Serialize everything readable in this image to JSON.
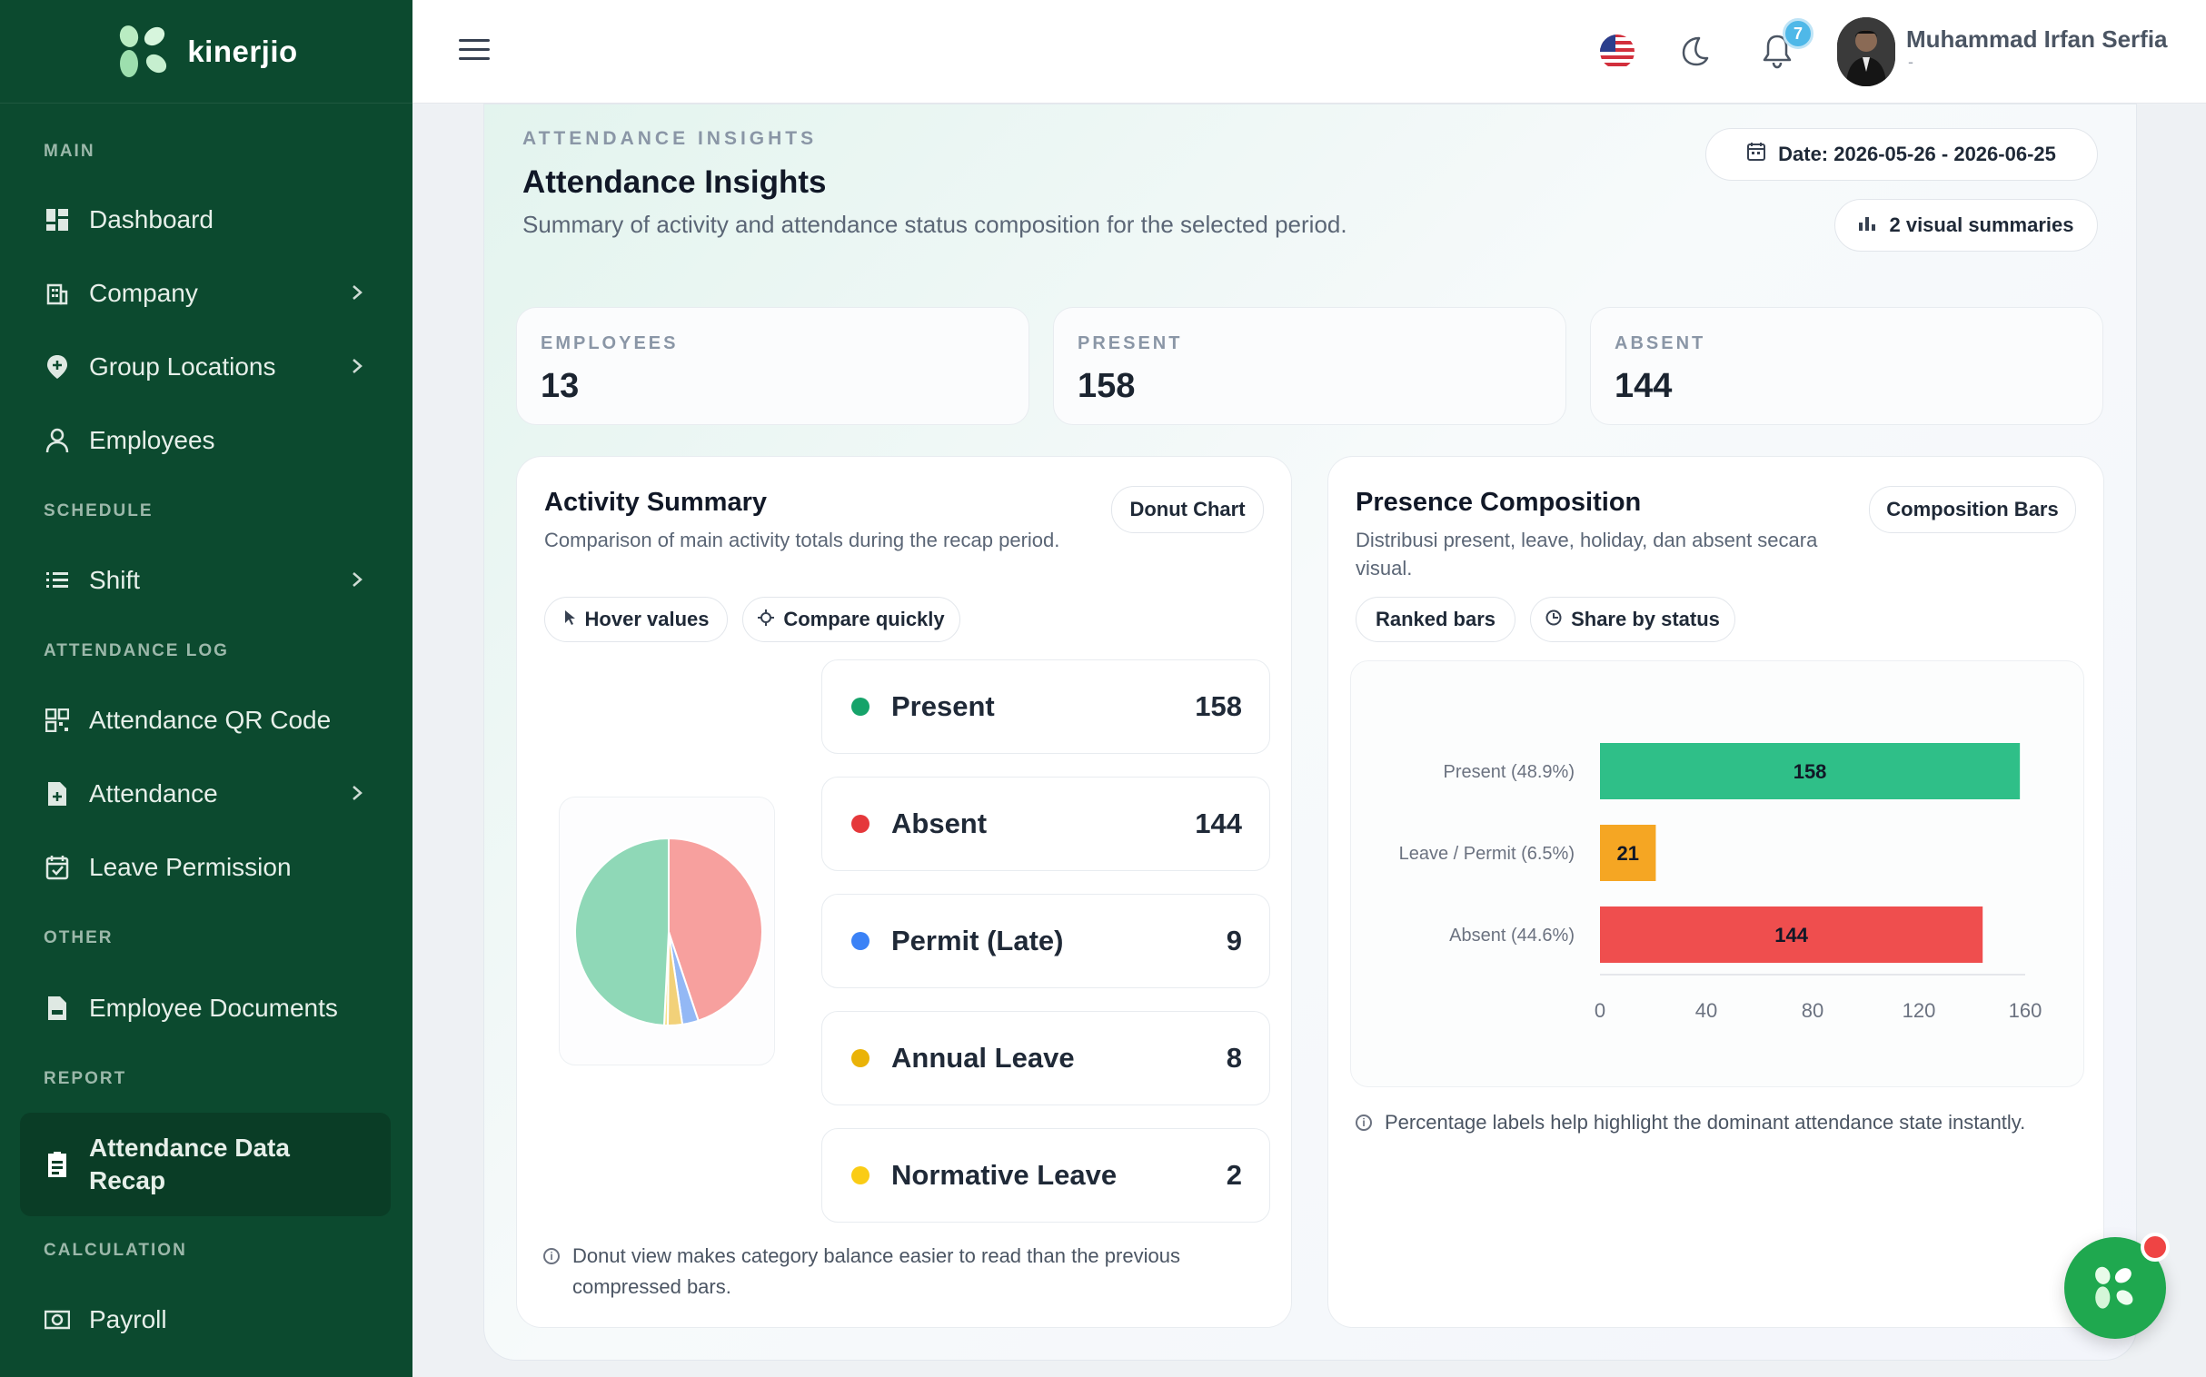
{
  "brand": {
    "name": "kinerjio"
  },
  "sidebar": {
    "sections": {
      "main": "MAIN",
      "schedule": "SCHEDULE",
      "attendance_log": "ATTENDANCE LOG",
      "other": "OTHER",
      "report": "REPORT",
      "calculation": "CALCULATION"
    },
    "items": [
      {
        "label": "Dashboard",
        "icon": "dashboard-icon"
      },
      {
        "label": "Company",
        "icon": "building-icon"
      },
      {
        "label": "Group Locations",
        "icon": "location-pin-icon"
      },
      {
        "label": "Employees",
        "icon": "user-icon"
      },
      {
        "label": "Shift",
        "icon": "list-icon"
      },
      {
        "label": "Attendance QR Code",
        "icon": "qr-code-icon"
      },
      {
        "label": "Attendance",
        "icon": "file-plus-icon"
      },
      {
        "label": "Leave Permission",
        "icon": "calendar-check-icon"
      },
      {
        "label": "Employee Documents",
        "icon": "document-icon"
      },
      {
        "label": "Attendance Data Recap",
        "icon": "clipboard-icon"
      },
      {
        "label": "Payroll",
        "icon": "money-icon"
      }
    ]
  },
  "topbar": {
    "notification_count": "7",
    "user_name": "Muhammad Irfan Serfia",
    "user_role": "-"
  },
  "insights": {
    "eyebrow": "ATTENDANCE INSIGHTS",
    "title": "Attendance Insights",
    "subtitle": "Summary of activity and attendance status composition for the selected period.",
    "date_badge": "Date: 2026-05-26 - 2026-06-25",
    "summary_badge": "2 visual summaries"
  },
  "kpis": [
    {
      "label": "EMPLOYEES",
      "value": "13"
    },
    {
      "label": "PRESENT",
      "value": "158"
    },
    {
      "label": "ABSENT",
      "value": "144"
    }
  ],
  "activity": {
    "title": "Activity Summary",
    "subtitle": "Comparison of main activity totals during the recap period.",
    "chart_type_badge": "Donut Chart",
    "chip_hover": "Hover values",
    "chip_compare": "Compare quickly",
    "items": [
      {
        "label": "Present",
        "value": "158",
        "color": "#16a36a"
      },
      {
        "label": "Absent",
        "value": "144",
        "color": "#e5383b"
      },
      {
        "label": "Permit (Late)",
        "value": "9",
        "color": "#3b82f6"
      },
      {
        "label": "Annual Leave",
        "value": "8",
        "color": "#eab308"
      },
      {
        "label": "Normative Leave",
        "value": "2",
        "color": "#facc15"
      }
    ],
    "note": "Donut view makes category balance easier to read than the previous compressed bars."
  },
  "composition": {
    "title": "Presence Composition",
    "subtitle": "Distribusi present, leave, holiday, dan absent secara visual.",
    "chart_type_badge": "Composition Bars",
    "chip_ranked": "Ranked bars",
    "chip_share": "Share by status",
    "note": "Percentage labels help highlight the dominant attendance state instantly."
  },
  "chart_data": [
    {
      "type": "pie",
      "categories": [
        "Present",
        "Absent",
        "Permit (Late)",
        "Annual Leave",
        "Normative Leave"
      ],
      "values": [
        158,
        144,
        9,
        8,
        2
      ],
      "colors": [
        "#8fd8b7",
        "#f7a09e",
        "#93b8f5",
        "#f2d179",
        "#f7e38f"
      ]
    },
    {
      "type": "bar",
      "orientation": "horizontal",
      "categories": [
        "Present (48.9%)",
        "Leave / Permit (6.5%)",
        "Absent (44.6%)"
      ],
      "values": [
        158,
        21,
        144
      ],
      "colors": [
        "#2fbf88",
        "#f5a623",
        "#ef4e4e"
      ],
      "xticks": [
        "0",
        "40",
        "80",
        "120",
        "160"
      ],
      "xlim": [
        0,
        160
      ]
    }
  ]
}
